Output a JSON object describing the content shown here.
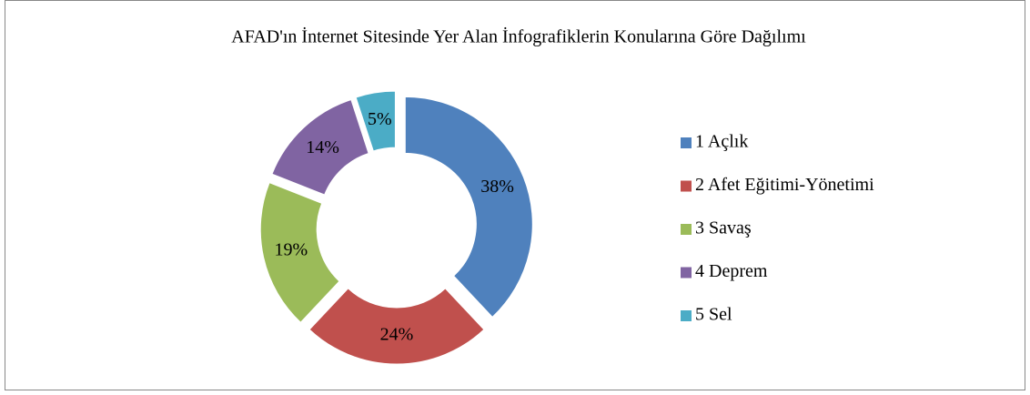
{
  "chart_data": {
    "type": "doughnut",
    "title": "AFAD'ın İnternet Sitesinde Yer Alan İnfografiklerin Konularına Göre Dağılımı",
    "categories": [
      "1 Açlık",
      "2 Afet Eğitimi-Yönetimi",
      "3 Savaş",
      "4 Deprem",
      "5 Sel"
    ],
    "values": [
      38,
      24,
      19,
      14,
      5
    ],
    "value_labels": [
      "38%",
      "24%",
      "19%",
      "14%",
      "5%"
    ],
    "colors": [
      "#4f81bd",
      "#c0504d",
      "#9bbb59",
      "#8064a2",
      "#4bacc6"
    ],
    "legend": "right"
  }
}
